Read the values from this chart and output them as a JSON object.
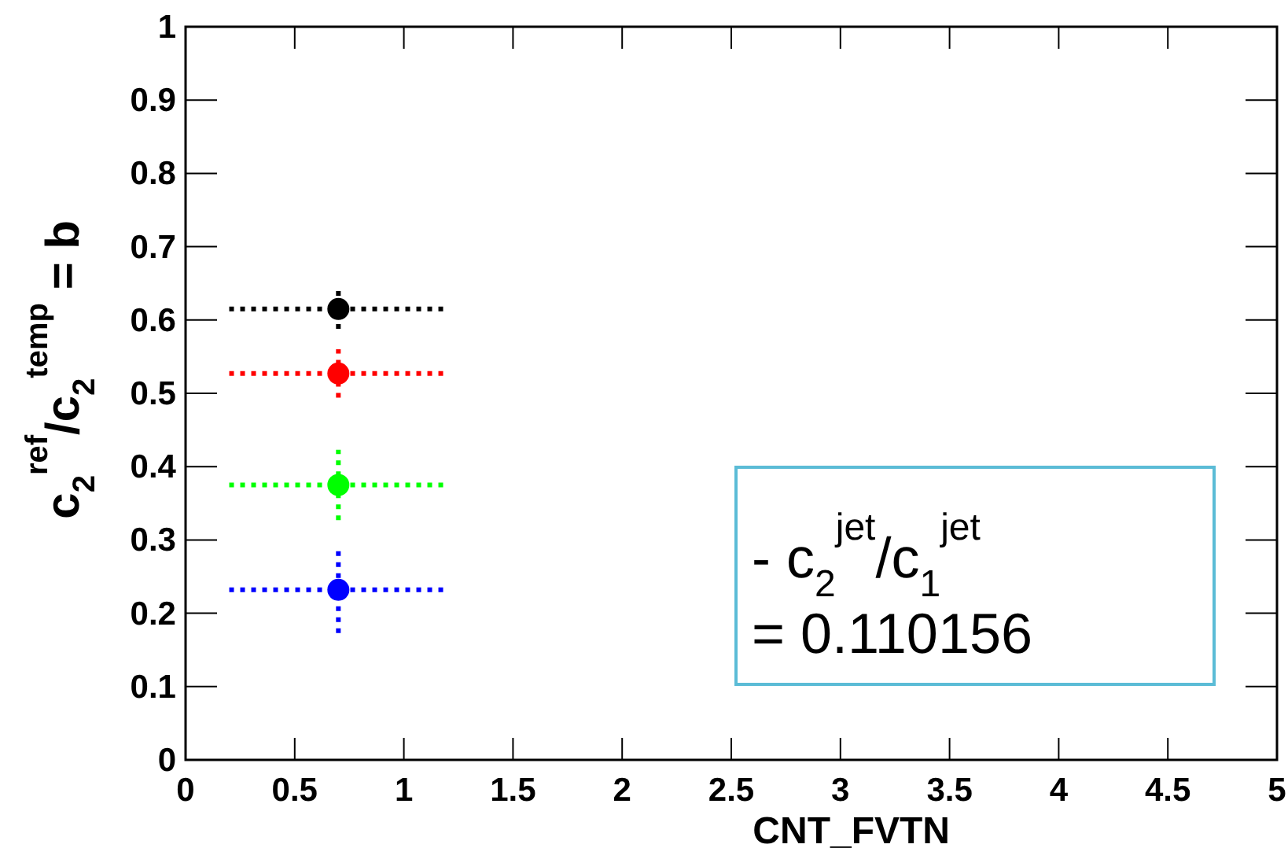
{
  "chart_data": {
    "type": "scatter",
    "xlabel": "CNT_FVTN",
    "ylabel": "c$_{2}$$^{ref}$/c$_{2}$$^{temp}$ = b",
    "xlim": [
      0,
      5
    ],
    "xticks": [
      0,
      0.5,
      1,
      1.5,
      2,
      2.5,
      3,
      3.5,
      4,
      4.5,
      5
    ],
    "ylim": [
      0,
      1
    ],
    "yticks": [
      0,
      0.1,
      0.2,
      0.3,
      0.4,
      0.5,
      0.6,
      0.7,
      0.8,
      0.9,
      1
    ],
    "x": [
      0.7
    ],
    "marker": "circle",
    "line_style": "dotted",
    "series": [
      {
        "color": "#000000",
        "values": [
          0.615
        ],
        "errors": [
          0.027
        ],
        "xerrors": [
          0.5
        ]
      },
      {
        "color": "#ff0000",
        "values": [
          0.527
        ],
        "errors": [
          0.033
        ],
        "xerrors": [
          0.5
        ]
      },
      {
        "color": "#00ff00",
        "values": [
          0.375
        ],
        "errors": [
          0.048
        ],
        "xerrors": [
          0.5
        ]
      },
      {
        "color": "#0000ff",
        "values": [
          0.232
        ],
        "errors": [
          0.059
        ],
        "xerrors": [
          0.5
        ]
      }
    ],
    "annotations": [
      "- c$_{2}$$^{jet}$/c$_{1}$$^{jet}$",
      "= 0.110156"
    ]
  }
}
